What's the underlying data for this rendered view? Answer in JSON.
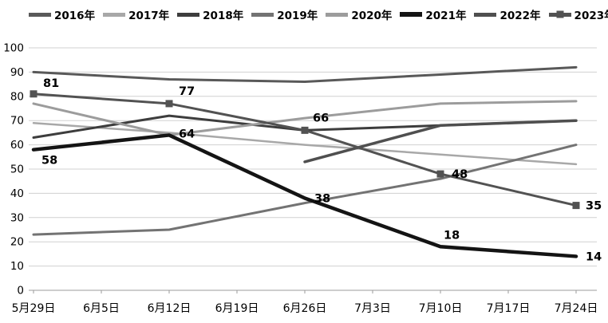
{
  "chart_data": {
    "type": "line",
    "title": "",
    "xlabel": "",
    "ylabel": "",
    "x_tick_labels": [
      "5月29日",
      "6月5日",
      "6月12日",
      "6月19日",
      "6月26日",
      "7月3日",
      "7月10日",
      "7月17日",
      "7月24日"
    ],
    "data_point_tick_indices": [
      0,
      2,
      4,
      6,
      8
    ],
    "ylim": [
      0,
      100
    ],
    "y_tick_step": 10,
    "grid": true,
    "legend_position": "top",
    "series": [
      {
        "name": "2016年",
        "color": "#595959",
        "stroke_width": 3,
        "values": [
          90,
          87,
          86,
          89,
          92
        ]
      },
      {
        "name": "2017年",
        "color": "#a8a8a8",
        "stroke_width": 2.5,
        "values": [
          69,
          65,
          60,
          56,
          52
        ]
      },
      {
        "name": "2018年",
        "color": "#3d3d3d",
        "stroke_width": 3,
        "values": [
          63,
          72,
          66,
          68,
          70
        ]
      },
      {
        "name": "2019年",
        "color": "#737373",
        "stroke_width": 3,
        "values": [
          23,
          25,
          36,
          46,
          60
        ]
      },
      {
        "name": "2020年",
        "color": "#9c9c9c",
        "stroke_width": 3,
        "values": [
          77,
          64,
          71,
          77,
          78
        ]
      },
      {
        "name": "2021年",
        "color": "#141414",
        "stroke_width": 4.5,
        "values": [
          58,
          64,
          38,
          18,
          14
        ],
        "show_labels": true,
        "label_offsets": [
          [
            10,
            18
          ],
          [
            12,
            3
          ],
          [
            12,
            5
          ],
          [
            4,
            -10
          ],
          [
            12,
            5
          ]
        ]
      },
      {
        "name": "2022年",
        "color": "#4f4f4f",
        "stroke_width": 3.5,
        "values": [
          null,
          null,
          53,
          68,
          70
        ]
      },
      {
        "name": "2023年",
        "color": "#525252",
        "stroke_width": 3,
        "marker": "square",
        "marker_size": 9,
        "values": [
          81,
          77,
          66,
          48,
          35
        ],
        "show_labels": true,
        "label_offsets": [
          [
            12,
            -9
          ],
          [
            12,
            -11
          ],
          [
            10,
            -11
          ],
          [
            14,
            5
          ],
          [
            12,
            5
          ]
        ]
      }
    ]
  }
}
